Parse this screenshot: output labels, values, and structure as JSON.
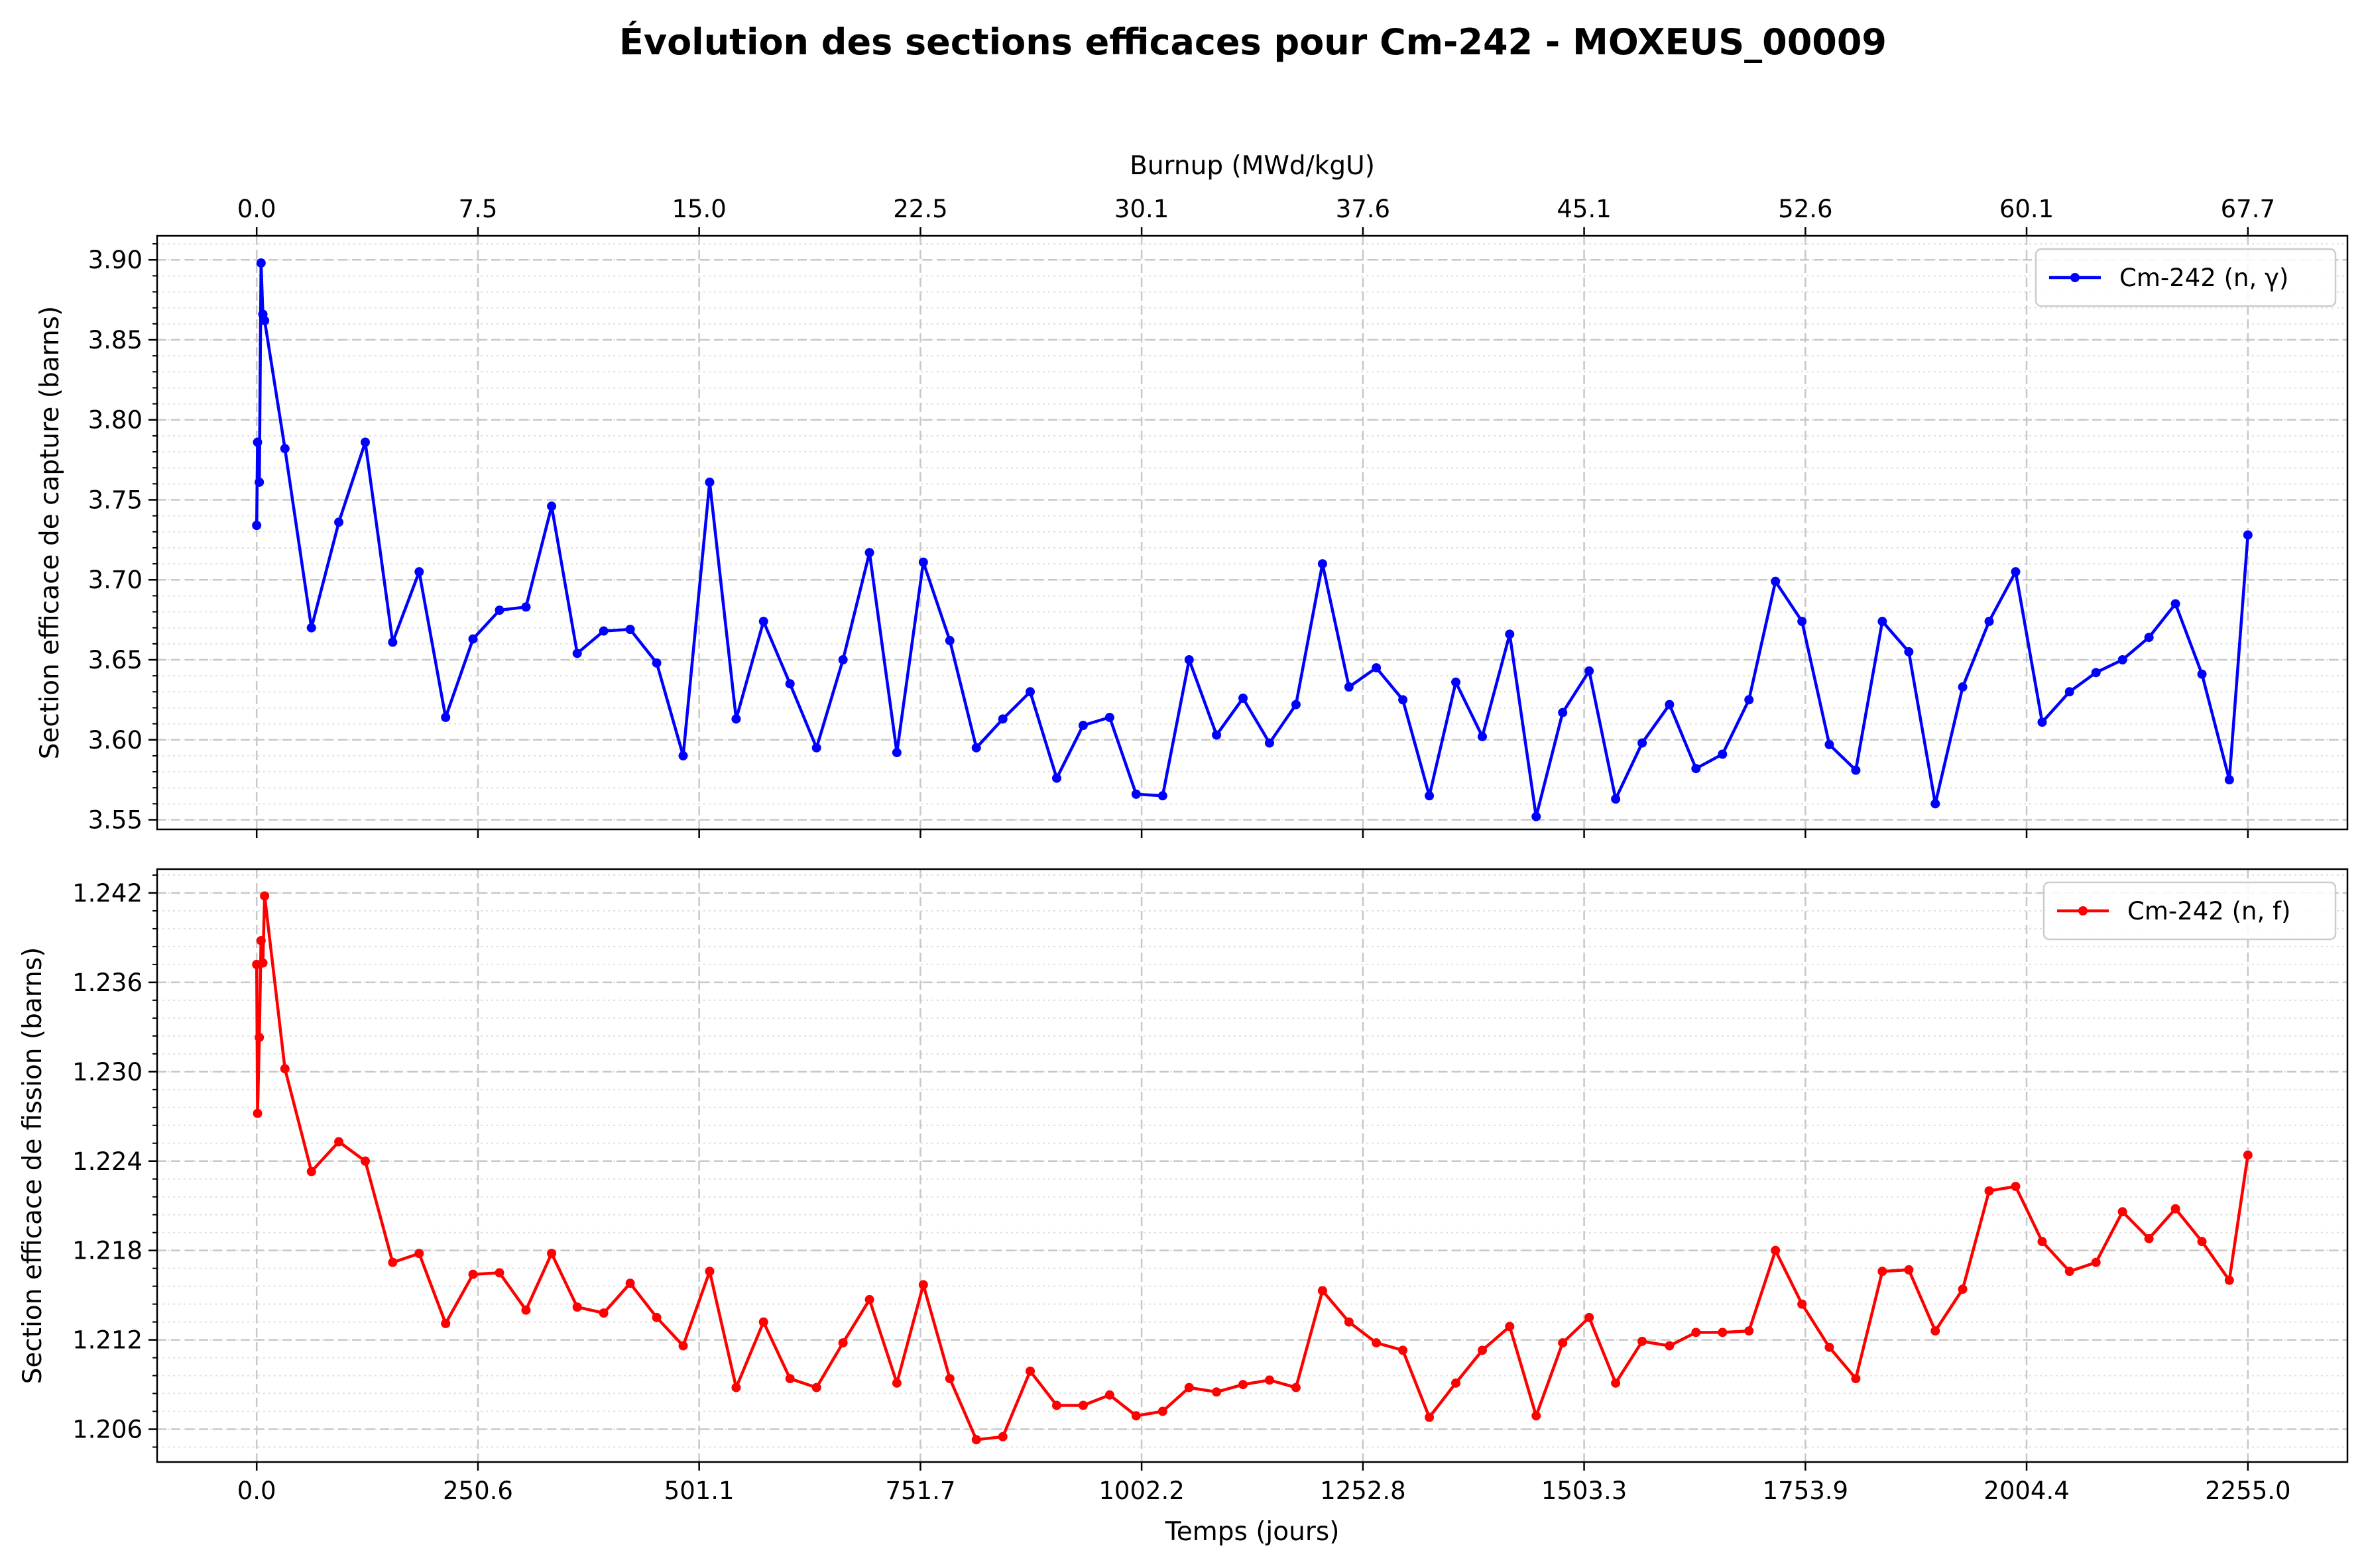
{
  "figure_title": "Évolution des sections efficaces pour Cm-242 - MOXEUS_00009",
  "chart_data": [
    {
      "type": "line",
      "name": "capture",
      "ylabel": "Section efficace de capture (barns)",
      "top_xlabel": "Burnup (MWd/kgU)",
      "top_ticks": [
        "0.0",
        "7.5",
        "15.0",
        "22.5",
        "30.1",
        "37.6",
        "45.1",
        "52.6",
        "60.1",
        "67.7"
      ],
      "xlim": [
        -112.75,
        2367.75
      ],
      "ylim": [
        3.544,
        3.915
      ],
      "y_ticks": [
        3.55,
        3.6,
        3.65,
        3.7,
        3.75,
        3.8,
        3.85,
        3.9
      ],
      "y_tick_labels": [
        "3.55",
        "3.60",
        "3.65",
        "3.70",
        "3.75",
        "3.80",
        "3.85",
        "3.90"
      ],
      "grid": true,
      "legend_position": "upper right",
      "series": [
        {
          "name": "Cm-242 (n, γ)",
          "color": "#0000ff",
          "x": [
            0,
            1,
            3,
            5,
            7,
            9,
            32,
            62,
            93,
            123,
            154,
            184,
            214,
            245,
            275,
            305,
            334,
            363,
            393,
            423,
            453,
            483,
            513,
            543,
            574,
            604,
            634,
            664,
            694,
            725,
            755,
            785,
            815,
            845,
            876,
            906,
            936,
            966,
            996,
            1026,
            1056,
            1087,
            1117,
            1147,
            1177,
            1207,
            1237,
            1268,
            1298,
            1328,
            1358,
            1388,
            1419,
            1449,
            1479,
            1509,
            1539,
            1569,
            1600,
            1630,
            1660,
            1690,
            1720,
            1750,
            1781,
            1811,
            1841,
            1871,
            1901,
            1932,
            1962,
            1992,
            2022,
            2053,
            2083,
            2113,
            2143,
            2173,
            2203,
            2234,
            2255
          ],
          "y": [
            3.734,
            3.786,
            3.761,
            3.898,
            3.866,
            3.862,
            3.782,
            3.67,
            3.736,
            3.786,
            3.661,
            3.705,
            3.614,
            3.663,
            3.681,
            3.683,
            3.746,
            3.654,
            3.668,
            3.669,
            3.648,
            3.59,
            3.761,
            3.613,
            3.674,
            3.635,
            3.595,
            3.65,
            3.717,
            3.592,
            3.711,
            3.662,
            3.595,
            3.613,
            3.63,
            3.576,
            3.609,
            3.614,
            3.566,
            3.565,
            3.65,
            3.603,
            3.626,
            3.598,
            3.622,
            3.71,
            3.633,
            3.645,
            3.625,
            3.565,
            3.636,
            3.602,
            3.666,
            3.552,
            3.617,
            3.643,
            3.563,
            3.598,
            3.622,
            3.582,
            3.591,
            3.625,
            3.699,
            3.674,
            3.597,
            3.581,
            3.674,
            3.655,
            3.56,
            3.633,
            3.674,
            3.705,
            3.611,
            3.63,
            3.642,
            3.65,
            3.664,
            3.685,
            3.641,
            3.575,
            3.728
          ]
        }
      ]
    },
    {
      "type": "line",
      "name": "fission",
      "ylabel": "Section efficace de fission (barns)",
      "xlabel": "Temps (jours)",
      "x_ticks": [
        0,
        250.6,
        501.1,
        751.7,
        1002.2,
        1252.8,
        1503.3,
        1753.9,
        2004.4,
        2255.0
      ],
      "x_tick_labels": [
        "0.0",
        "250.6",
        "501.1",
        "751.7",
        "1002.2",
        "1252.8",
        "1503.3",
        "1753.9",
        "2004.4",
        "2255.0"
      ],
      "xlim": [
        -112.75,
        2367.75
      ],
      "ylim": [
        1.2038,
        1.2436
      ],
      "y_ticks": [
        1.206,
        1.212,
        1.218,
        1.224,
        1.23,
        1.236,
        1.242
      ],
      "y_tick_labels": [
        "1.206",
        "1.212",
        "1.218",
        "1.224",
        "1.230",
        "1.236",
        "1.242"
      ],
      "grid": true,
      "legend_position": "upper right",
      "series": [
        {
          "name": "Cm-242 (n, f)",
          "color": "#ff0000",
          "x": [
            0,
            1,
            3,
            5,
            7,
            9,
            32,
            62,
            93,
            123,
            154,
            184,
            214,
            245,
            275,
            305,
            334,
            363,
            393,
            423,
            453,
            483,
            513,
            543,
            574,
            604,
            634,
            664,
            694,
            725,
            755,
            785,
            815,
            845,
            876,
            906,
            936,
            966,
            996,
            1026,
            1056,
            1087,
            1117,
            1147,
            1177,
            1207,
            1237,
            1268,
            1298,
            1328,
            1358,
            1388,
            1419,
            1449,
            1479,
            1509,
            1539,
            1569,
            1600,
            1630,
            1660,
            1690,
            1720,
            1750,
            1781,
            1811,
            1841,
            1871,
            1901,
            1932,
            1962,
            1992,
            2022,
            2053,
            2083,
            2113,
            2143,
            2173,
            2203,
            2234,
            2255
          ],
          "y": [
            1.2372,
            1.2272,
            1.2323,
            1.2388,
            1.2373,
            1.2418,
            1.2302,
            1.2233,
            1.2253,
            1.224,
            1.2172,
            1.2178,
            1.2131,
            1.2164,
            1.2165,
            1.214,
            1.2178,
            1.2142,
            1.2138,
            1.2158,
            1.2135,
            1.2116,
            1.2166,
            1.2088,
            1.2132,
            1.2094,
            1.2088,
            1.2118,
            1.2147,
            1.2091,
            1.2157,
            1.2094,
            1.2053,
            1.2055,
            1.2099,
            1.2076,
            1.2076,
            1.2083,
            1.2069,
            1.2072,
            1.2088,
            1.2085,
            1.209,
            1.2093,
            1.2088,
            1.2153,
            1.2132,
            1.2118,
            1.2113,
            1.2068,
            1.2091,
            1.2113,
            1.2129,
            1.2069,
            1.2118,
            1.2135,
            1.2091,
            1.2119,
            1.2116,
            1.2125,
            1.2125,
            1.2126,
            1.218,
            1.2144,
            1.2115,
            1.2094,
            1.2166,
            1.2167,
            1.2126,
            1.2154,
            1.222,
            1.2223,
            1.2186,
            1.2166,
            1.2172,
            1.2206,
            1.2188,
            1.2208,
            1.2186,
            1.216,
            1.2244
          ]
        }
      ]
    }
  ]
}
